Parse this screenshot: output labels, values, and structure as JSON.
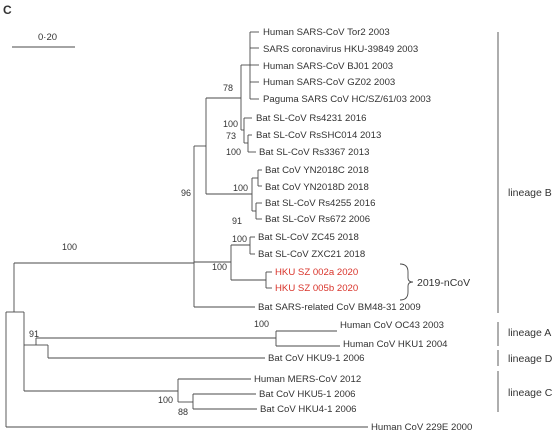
{
  "panel_label": "C",
  "scale_bar": {
    "label": "0·20"
  },
  "leaves": [
    {
      "id": "tor2",
      "label": "Human SARS-CoV Tor2 2003"
    },
    {
      "id": "hku39849",
      "label": "SARS coronavirus HKU-39849 2003"
    },
    {
      "id": "bj01",
      "label": "Human SARS-CoV BJ01 2003"
    },
    {
      "id": "gz02",
      "label": "Human SARS-CoV GZ02 2003"
    },
    {
      "id": "paguma",
      "label": "Paguma SARS CoV HC/SZ/61/03 2003"
    },
    {
      "id": "rs4231",
      "label": "Bat SL-CoV Rs4231 2016"
    },
    {
      "id": "rsshc014",
      "label": "Bat SL-CoV RsSHC014 2013"
    },
    {
      "id": "rs3367",
      "label": "Bat SL-CoV Rs3367 2013"
    },
    {
      "id": "yn2018c",
      "label": "Bat CoV YN2018C 2018"
    },
    {
      "id": "yn2018d",
      "label": "Bat CoV YN2018D 2018"
    },
    {
      "id": "rs4255",
      "label": "Bat SL-CoV Rs4255 2016"
    },
    {
      "id": "rs672",
      "label": "Bat SL-CoV Rs672 2006"
    },
    {
      "id": "zc45",
      "label": "Bat SL-CoV ZC45 2018"
    },
    {
      "id": "zxc21",
      "label": "Bat SL-CoV ZXC21 2018"
    },
    {
      "id": "sz002a",
      "label": "HKU SZ 002a 2020",
      "color": "#d9342b"
    },
    {
      "id": "sz005b",
      "label": "HKU SZ 005b 2020",
      "color": "#d9342b"
    },
    {
      "id": "bm48",
      "label": "Bat SARS-related CoV BM48-31 2009"
    },
    {
      "id": "oc43",
      "label": "Human CoV OC43 2003"
    },
    {
      "id": "hku1",
      "label": "Human CoV HKU1 2004"
    },
    {
      "id": "hku9",
      "label": "Bat CoV HKU9-1 2006"
    },
    {
      "id": "mers",
      "label": "Human MERS-CoV 2012"
    },
    {
      "id": "hku5",
      "label": "Bat CoV HKU5-1 2006"
    },
    {
      "id": "hku4",
      "label": "Bat CoV HKU4-1 2006"
    },
    {
      "id": "c229e",
      "label": "Human CoV 229E 2000"
    }
  ],
  "support_values": {
    "sars_human": "78",
    "rs_group": "100",
    "rs_inner": "73",
    "rs3367": "100",
    "yn_group": "100",
    "rs4255_group": "91",
    "sarbeco_core": "96",
    "zc_group": "100",
    "novel_group": "100",
    "lineage_b_root": "100",
    "embeco": "100",
    "beta_root": "91",
    "merbeco": "100",
    "hku5_hku4": "88"
  },
  "novel_bracket": {
    "label": "2019-nCoV"
  },
  "lineages": [
    {
      "id": "b",
      "label": "lineage B"
    },
    {
      "id": "a",
      "label": "lineage  A"
    },
    {
      "id": "d",
      "label": "lineage D"
    },
    {
      "id": "c",
      "label": "lineage C"
    }
  ],
  "colors": {
    "branch": "#4a4a4a",
    "text": "#333333",
    "highlight": "#d9342b"
  }
}
